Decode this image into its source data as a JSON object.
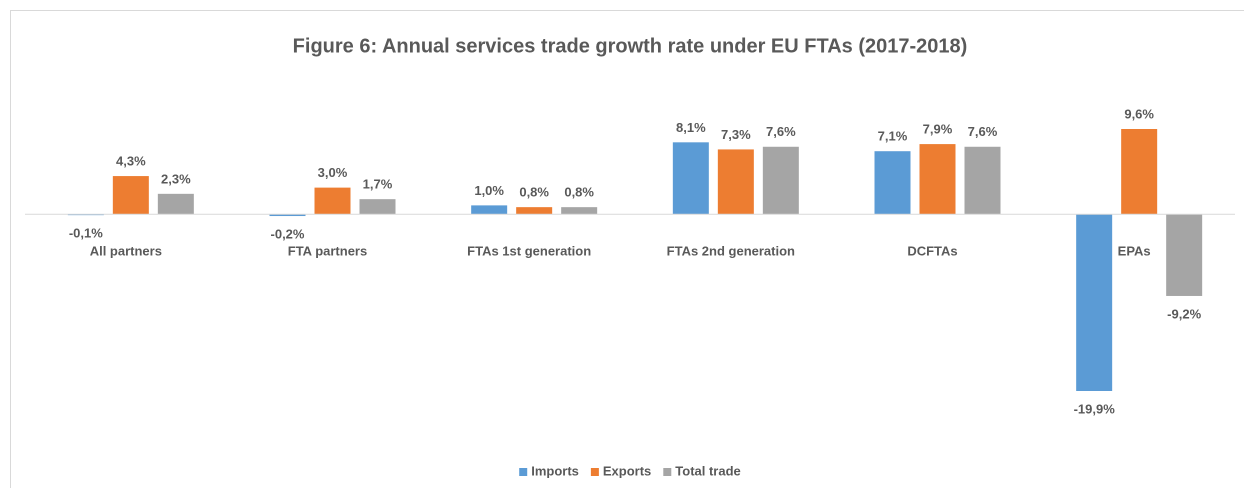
{
  "chart_data": {
    "type": "bar",
    "title": "Figure 6: Annual services trade growth rate under EU FTAs (2017-2018)",
    "categories": [
      "All partners",
      "FTA partners",
      "FTAs 1st generation",
      "FTAs 2nd generation",
      "DCFTAs",
      "EPAs"
    ],
    "series": [
      {
        "name": "Imports",
        "color": "#5b9bd5",
        "values": [
          -0.1,
          -0.2,
          1.0,
          8.1,
          7.1,
          -19.9
        ],
        "value_labels": [
          "-0,1%",
          "-0,2%",
          "1,0%",
          "8,1%",
          "7,1%",
          "-19,9%"
        ]
      },
      {
        "name": "Exports",
        "color": "#ed7d31",
        "values": [
          4.3,
          3.0,
          0.8,
          7.3,
          7.9,
          9.6
        ],
        "value_labels": [
          "4,3%",
          "3,0%",
          "0,8%",
          "7,3%",
          "7,9%",
          "9,6%"
        ]
      },
      {
        "name": "Total trade",
        "color": "#a5a5a5",
        "values": [
          2.3,
          1.7,
          0.8,
          7.6,
          7.6,
          -9.2
        ],
        "value_labels": [
          "2,3%",
          "1,7%",
          "0,8%",
          "7,6%",
          "7,6%",
          "-9,2%"
        ]
      }
    ],
    "legend": "bottom"
  }
}
